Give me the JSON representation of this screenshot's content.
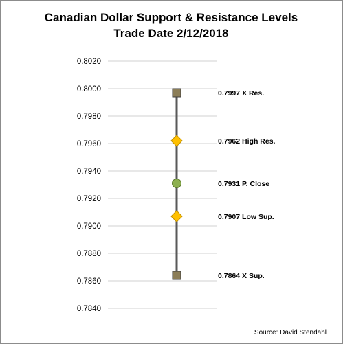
{
  "chart_data": {
    "type": "scatter",
    "title_lines": [
      "Canadian Dollar Support & Resistance Levels",
      "Trade Date 2/12/2018"
    ],
    "ylim": [
      0.784,
      0.802
    ],
    "y_ticks": [
      "0.8020",
      "0.8000",
      "0.7980",
      "0.7960",
      "0.7940",
      "0.7920",
      "0.7900",
      "0.7880",
      "0.7860",
      "0.7840"
    ],
    "grid": true,
    "points": [
      {
        "value": 0.7997,
        "label": "0.7997 X Res.",
        "marker": "square",
        "color": "#8b7d57"
      },
      {
        "value": 0.7962,
        "label": "0.7962 High Res.",
        "marker": "diamond",
        "color": "#ffc000"
      },
      {
        "value": 0.7931,
        "label": "0.7931  P. Close",
        "marker": "circle",
        "color": "#8db050"
      },
      {
        "value": 0.7907,
        "label": "0.7907 Low Sup.",
        "marker": "diamond",
        "color": "#ffc000"
      },
      {
        "value": 0.7864,
        "label": "0.7864  X Sup.",
        "marker": "square",
        "color": "#8b7d57"
      }
    ],
    "line_color": "#595959",
    "source": "Source: David Stendahl"
  }
}
